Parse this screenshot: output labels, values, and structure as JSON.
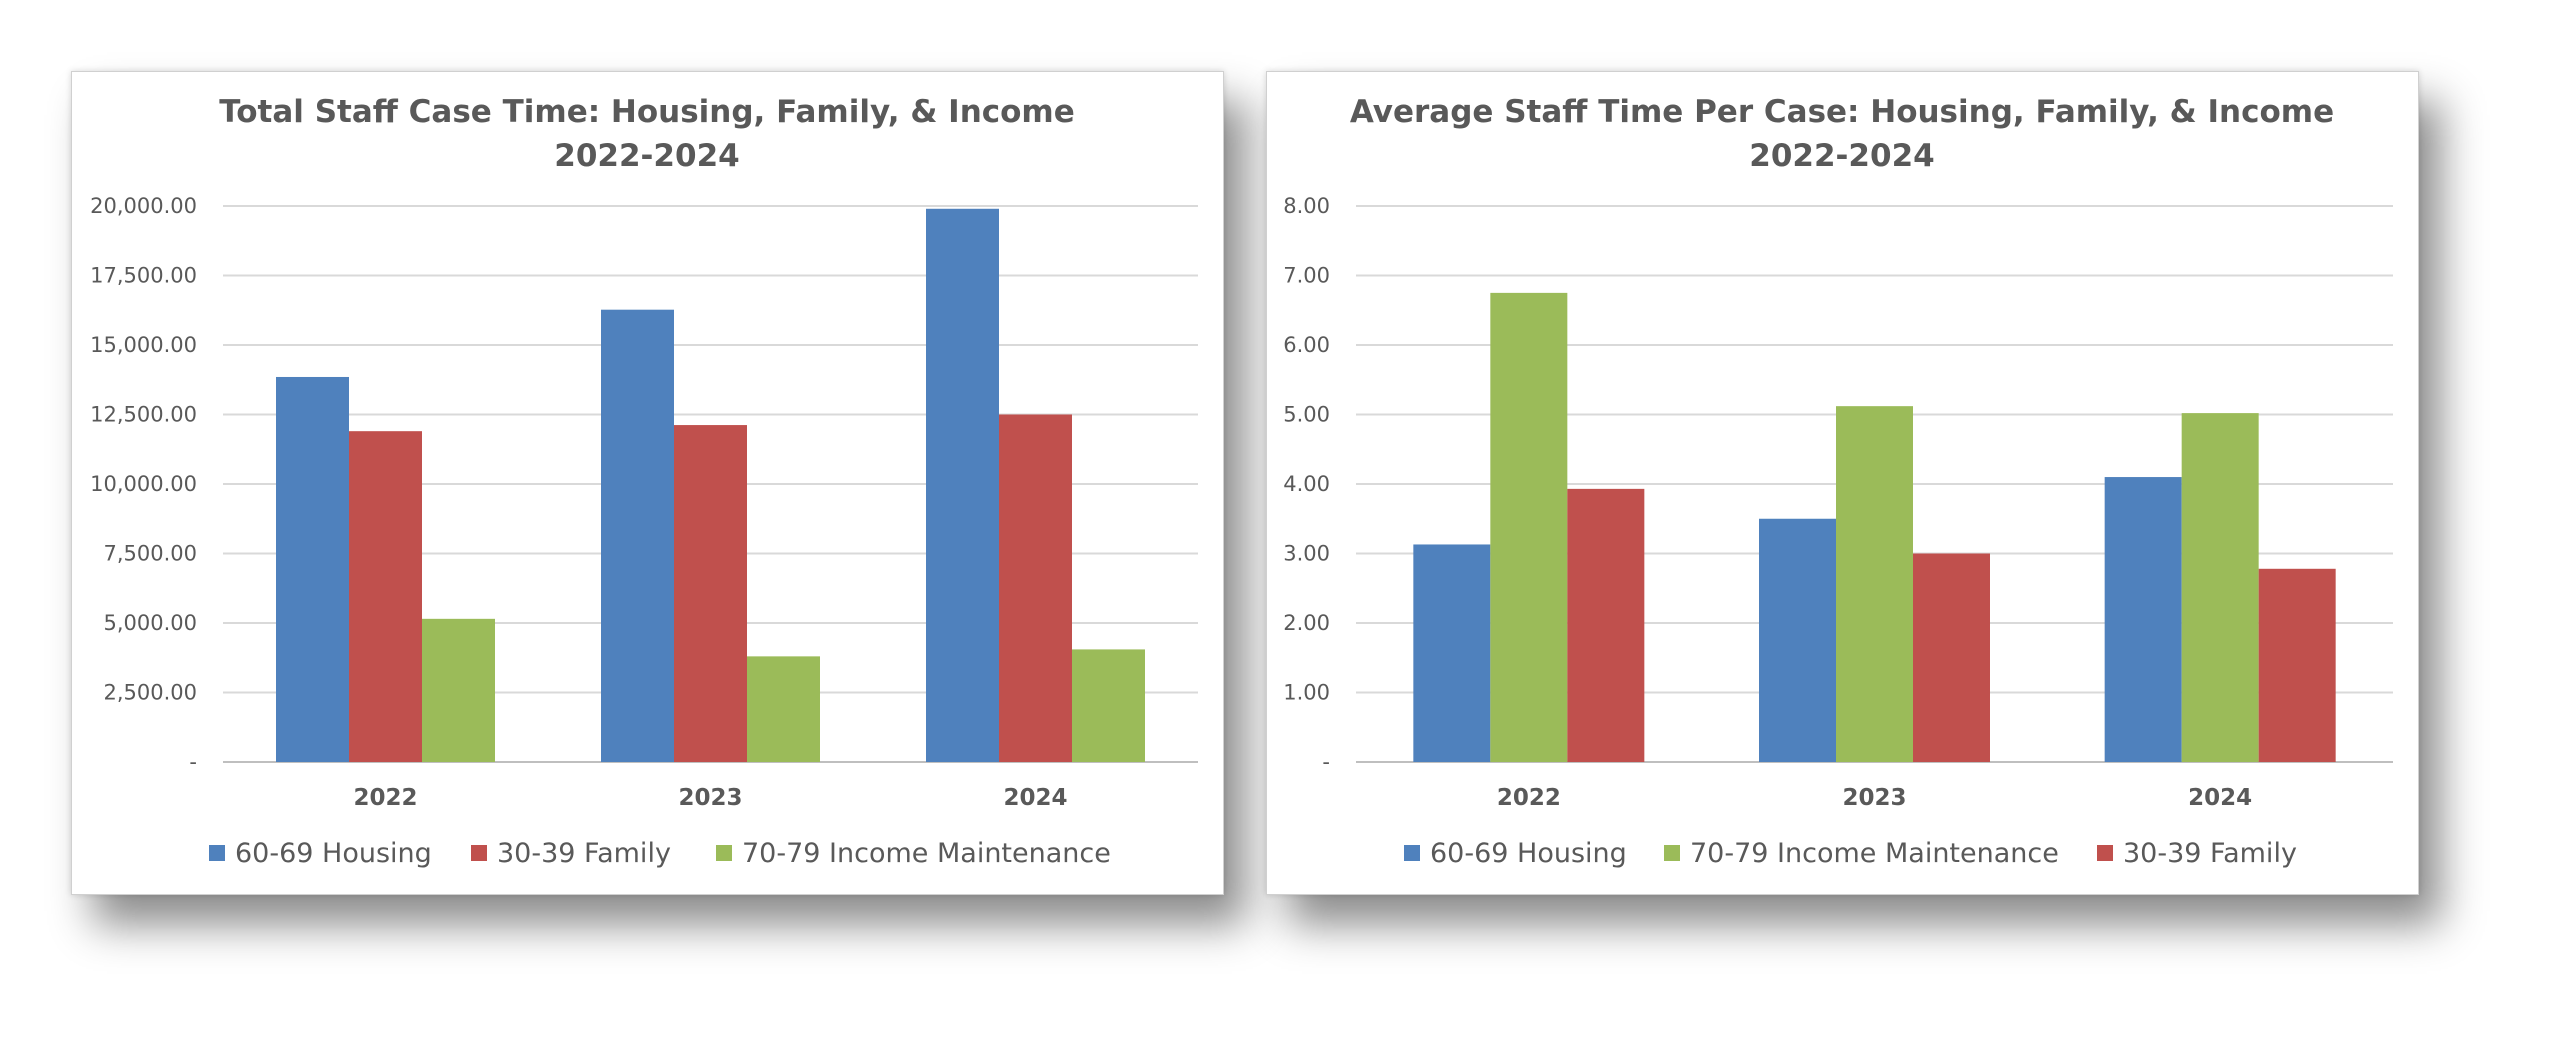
{
  "chart_data": [
    {
      "type": "bar",
      "title": "Total Staff Case Time: Housing, Family, & Income",
      "subtitle": "2022-2024",
      "categories": [
        "2022",
        "2023",
        "2024"
      ],
      "series": [
        {
          "name": "60-69 Housing",
          "color": "#4F81BD",
          "values": [
            13850,
            16270,
            19900
          ]
        },
        {
          "name": "30-39 Family",
          "color": "#C0504D",
          "values": [
            11900,
            12120,
            12500
          ]
        },
        {
          "name": "70-79 Income Maintenance",
          "color": "#9BBB59",
          "values": [
            5150,
            3800,
            4050
          ]
        }
      ],
      "ylim": [
        0,
        20000
      ],
      "yticks": [
        0,
        2500,
        5000,
        7500,
        10000,
        12500,
        15000,
        17500,
        20000
      ],
      "ytick_labels": [
        "-",
        "2,500.00",
        "5,000.00",
        "7,500.00",
        "10,000.00",
        "12,500.00",
        "15,000.00",
        "17,500.00",
        "20,000.00"
      ],
      "grid": true,
      "legend": "bottom"
    },
    {
      "type": "bar",
      "title": "Average Staff Time Per Case: Housing, Family, & Income",
      "subtitle": "2022-2024",
      "categories": [
        "2022",
        "2023",
        "2024"
      ],
      "series": [
        {
          "name": "60-69 Housing",
          "color": "#4F81BD",
          "values": [
            3.13,
            3.5,
            4.1
          ]
        },
        {
          "name": "70-79 Income Maintenance",
          "color": "#9BBB59",
          "values": [
            6.75,
            5.12,
            5.02
          ]
        },
        {
          "name": "30-39 Family",
          "color": "#C0504D",
          "values": [
            3.93,
            3.0,
            2.78
          ]
        }
      ],
      "ylim": [
        0,
        8
      ],
      "yticks": [
        0,
        1,
        2,
        3,
        4,
        5,
        6,
        7,
        8
      ],
      "ytick_labels": [
        "-",
        "1.00",
        "2.00",
        "3.00",
        "4.00",
        "5.00",
        "6.00",
        "7.00",
        "8.00"
      ],
      "grid": true,
      "legend": "bottom"
    }
  ]
}
